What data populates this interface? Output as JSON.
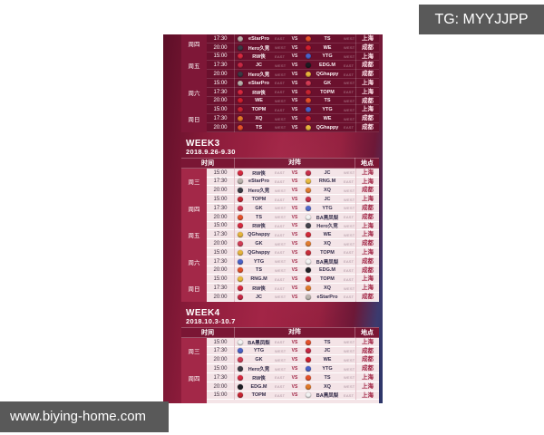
{
  "badges": {
    "tg": "TG: MYYJJPP",
    "site": "www.biying-home.com"
  },
  "table_headers": {
    "time": "时间",
    "matchup": "对阵",
    "venue": "地点"
  },
  "vs_label": "VS",
  "accent_colors": {
    "crimson": "#a22546",
    "navy": "#2b3568",
    "badge_gray": "#595959",
    "light_row": "#f4e4e7",
    "dark_row": "#6a102d"
  },
  "team_colors": {
    "eStarPro": "#b9b2ac",
    "Hero久竞": "#3a3a44",
    "RW侠": "#d6283f",
    "JC": "#c62845",
    "TS": "#e4502a",
    "WE": "#cf1f2f",
    "YTG": "#4a62c8",
    "EDG.M": "#1c1c22",
    "QGhappy": "#e6b43c",
    "GK": "#d23b55",
    "TOPM": "#c62432",
    "XQ": "#e07828",
    "RNG.M": "#e8b93c",
    "BA黑凤梨": "#f2f2f2"
  },
  "weeks": [
    {
      "title": "",
      "date_range": "",
      "show_header": false,
      "style": "dark",
      "days": [
        {
          "day": "周四",
          "matches": [
            {
              "time": "17:30",
              "t1": "eStarPro",
              "d1": "EAST",
              "t2": "TS",
              "d2": "WEST",
              "venue": "上海"
            },
            {
              "time": "20:00",
              "t1": "Hero久竞",
              "d1": "WEST",
              "t2": "WE",
              "d2": "WEST",
              "venue": "成都"
            }
          ]
        },
        {
          "day": "周五",
          "matches": [
            {
              "time": "15:00",
              "t1": "RW侠",
              "d1": "EAST",
              "t2": "YTG",
              "d2": "WEST",
              "venue": "上海"
            },
            {
              "time": "17:30",
              "t1": "JC",
              "d1": "WEST",
              "t2": "EDG.M",
              "d2": "EAST",
              "venue": "成都"
            },
            {
              "time": "20:00",
              "t1": "Hero久竞",
              "d1": "WEST",
              "t2": "QGhappy",
              "d2": "EAST",
              "venue": "成都"
            }
          ]
        },
        {
          "day": "周六",
          "matches": [
            {
              "time": "15:00",
              "t1": "eStarPro",
              "d1": "EAST",
              "t2": "GK",
              "d2": "WEST",
              "venue": "上海"
            },
            {
              "time": "17:30",
              "t1": "RW侠",
              "d1": "EAST",
              "t2": "TOPM",
              "d2": "EAST",
              "venue": "上海"
            },
            {
              "time": "20:00",
              "t1": "WE",
              "d1": "WEST",
              "t2": "TS",
              "d2": "WEST",
              "venue": "成都"
            }
          ]
        },
        {
          "day": "周日",
          "matches": [
            {
              "time": "15:00",
              "t1": "TOPM",
              "d1": "EAST",
              "t2": "YTG",
              "d2": "WEST",
              "venue": "上海"
            },
            {
              "time": "17:30",
              "t1": "XQ",
              "d1": "WEST",
              "t2": "WE",
              "d2": "WEST",
              "venue": "成都"
            },
            {
              "time": "20:00",
              "t1": "TS",
              "d1": "WEST",
              "t2": "QGhappy",
              "d2": "EAST",
              "venue": "成都"
            }
          ]
        }
      ]
    },
    {
      "title": "WEEK3",
      "date_range": "2018.9.26-9.30",
      "show_header": true,
      "style": "light",
      "days": [
        {
          "day": "周三",
          "matches": [
            {
              "time": "15:00",
              "t1": "RW侠",
              "d1": "EAST",
              "t2": "JC",
              "d2": "WEST",
              "venue": "上海"
            },
            {
              "time": "17:30",
              "t1": "eStarPro",
              "d1": "EAST",
              "t2": "RNG.M",
              "d2": "EAST",
              "venue": "上海"
            },
            {
              "time": "20:00",
              "t1": "Hero久竞",
              "d1": "WEST",
              "t2": "XQ",
              "d2": "WEST",
              "venue": "成都"
            }
          ]
        },
        {
          "day": "周四",
          "matches": [
            {
              "time": "15:00",
              "t1": "TOPM",
              "d1": "EAST",
              "t2": "JC",
              "d2": "WEST",
              "venue": "上海"
            },
            {
              "time": "17:30",
              "t1": "GK",
              "d1": "WEST",
              "t2": "YTG",
              "d2": "WEST",
              "venue": "成都"
            },
            {
              "time": "20:00",
              "t1": "TS",
              "d1": "WEST",
              "t2": "BA黑凤梨",
              "d2": "EAST",
              "venue": "成都"
            }
          ]
        },
        {
          "day": "周五",
          "matches": [
            {
              "time": "15:00",
              "t1": "RW侠",
              "d1": "EAST",
              "t2": "Hero久竞",
              "d2": "WEST",
              "venue": "上海"
            },
            {
              "time": "17:30",
              "t1": "QGhappy",
              "d1": "EAST",
              "t2": "WE",
              "d2": "WEST",
              "venue": "上海"
            },
            {
              "time": "20:00",
              "t1": "GK",
              "d1": "WEST",
              "t2": "XQ",
              "d2": "WEST",
              "venue": "成都"
            }
          ]
        },
        {
          "day": "周六",
          "matches": [
            {
              "time": "15:00",
              "t1": "QGhappy",
              "d1": "EAST",
              "t2": "TOPM",
              "d2": "EAST",
              "venue": "上海"
            },
            {
              "time": "17:30",
              "t1": "YTG",
              "d1": "WEST",
              "t2": "BA黑凤梨",
              "d2": "EAST",
              "venue": "成都"
            },
            {
              "time": "20:00",
              "t1": "TS",
              "d1": "WEST",
              "t2": "EDG.M",
              "d2": "EAST",
              "venue": "成都"
            }
          ]
        },
        {
          "day": "周日",
          "matches": [
            {
              "time": "15:00",
              "t1": "RNG.M",
              "d1": "EAST",
              "t2": "TOPM",
              "d2": "EAST",
              "venue": "上海"
            },
            {
              "time": "17:30",
              "t1": "RW侠",
              "d1": "EAST",
              "t2": "XQ",
              "d2": "WEST",
              "venue": "上海"
            },
            {
              "time": "20:00",
              "t1": "JC",
              "d1": "WEST",
              "t2": "eStarPro",
              "d2": "EAST",
              "venue": "成都"
            }
          ]
        }
      ]
    },
    {
      "title": "WEEK4",
      "date_range": "2018.10.3-10.7",
      "show_header": true,
      "style": "light",
      "days": [
        {
          "day": "周三",
          "matches": [
            {
              "time": "15:00",
              "t1": "BA黑凤梨",
              "d1": "EAST",
              "t2": "TS",
              "d2": "WEST",
              "venue": "上海"
            },
            {
              "time": "17:30",
              "t1": "YTG",
              "d1": "WEST",
              "t2": "JC",
              "d2": "WEST",
              "venue": "成都"
            },
            {
              "time": "20:00",
              "t1": "GK",
              "d1": "WEST",
              "t2": "WE",
              "d2": "WEST",
              "venue": "成都"
            }
          ]
        },
        {
          "day": "周四",
          "matches": [
            {
              "time": "15:00",
              "t1": "Hero久竞",
              "d1": "WEST",
              "t2": "YTG",
              "d2": "WEST",
              "venue": "成都"
            },
            {
              "time": "17:30",
              "t1": "RW侠",
              "d1": "EAST",
              "t2": "TS",
              "d2": "WEST",
              "venue": "上海"
            },
            {
              "time": "20:00",
              "t1": "EDG.M",
              "d1": "EAST",
              "t2": "XQ",
              "d2": "WEST",
              "venue": "上海"
            }
          ]
        },
        {
          "day": "",
          "partial": true,
          "matches": [
            {
              "time": "15:00",
              "t1": "TOPM",
              "d1": "EAST",
              "t2": "BA黑凤梨",
              "d2": "EAST",
              "venue": "上海"
            }
          ]
        }
      ]
    }
  ]
}
